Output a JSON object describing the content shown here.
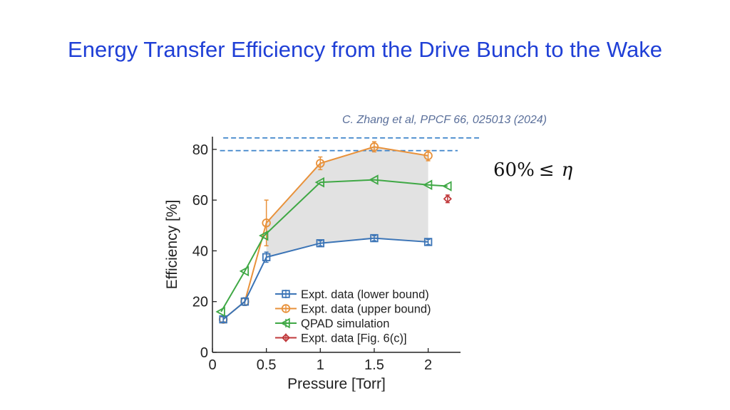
{
  "slide": {
    "title": "Energy Transfer Efficiency from the Drive Bunch to the Wake",
    "citation": "C. Zhang et al, PPCF 66, 025013 (2024)",
    "equation": {
      "lhs": "60%",
      "symbol": "≤",
      "rhs": "η"
    }
  },
  "chart_data": {
    "type": "line",
    "xlabel": "Pressure [Torr]",
    "ylabel": "Efficiency [%]",
    "xlim": [
      0,
      2.3
    ],
    "ylim": [
      0,
      85
    ],
    "xticks": [
      "0",
      "0.5",
      "1",
      "1.5",
      "2"
    ],
    "yticks": [
      "0",
      "20",
      "40",
      "60",
      "80"
    ],
    "grid": false,
    "legend_position": "lower-right",
    "reference_lines": [
      84.5,
      79.5
    ],
    "series": [
      {
        "name": "Expt. data (lower bound)",
        "color": "#3b74b6",
        "marker": "square",
        "x": [
          0.1,
          0.3,
          0.5,
          1.0,
          1.5,
          2.0
        ],
        "y": [
          13,
          20,
          37.5,
          43,
          45,
          43.5
        ],
        "err": [
          1,
          1.5,
          2,
          1,
          1,
          1
        ]
      },
      {
        "name": "Expt. data (upper bound)",
        "color": "#e8913a",
        "marker": "circle",
        "x": [
          0.1,
          0.3,
          0.5,
          1.0,
          1.5,
          2.0
        ],
        "y": [
          13,
          20,
          51,
          74.5,
          81,
          77.5
        ],
        "err": [
          1,
          1.5,
          9,
          2.5,
          2,
          2
        ]
      },
      {
        "name": "QPAD simulation",
        "color": "#3fa845",
        "marker": "triangle-left",
        "x": [
          0.08,
          0.3,
          0.48,
          1.0,
          1.5,
          2.0,
          2.18
        ],
        "y": [
          16,
          32,
          46,
          67,
          68,
          66,
          65.5
        ],
        "err": []
      },
      {
        "name": "Expt. data [Fig. 6(c)]",
        "color": "#c0393b",
        "marker": "diamond",
        "x": [
          2.18
        ],
        "y": [
          60.5
        ],
        "err": [
          1.5
        ]
      }
    ]
  }
}
